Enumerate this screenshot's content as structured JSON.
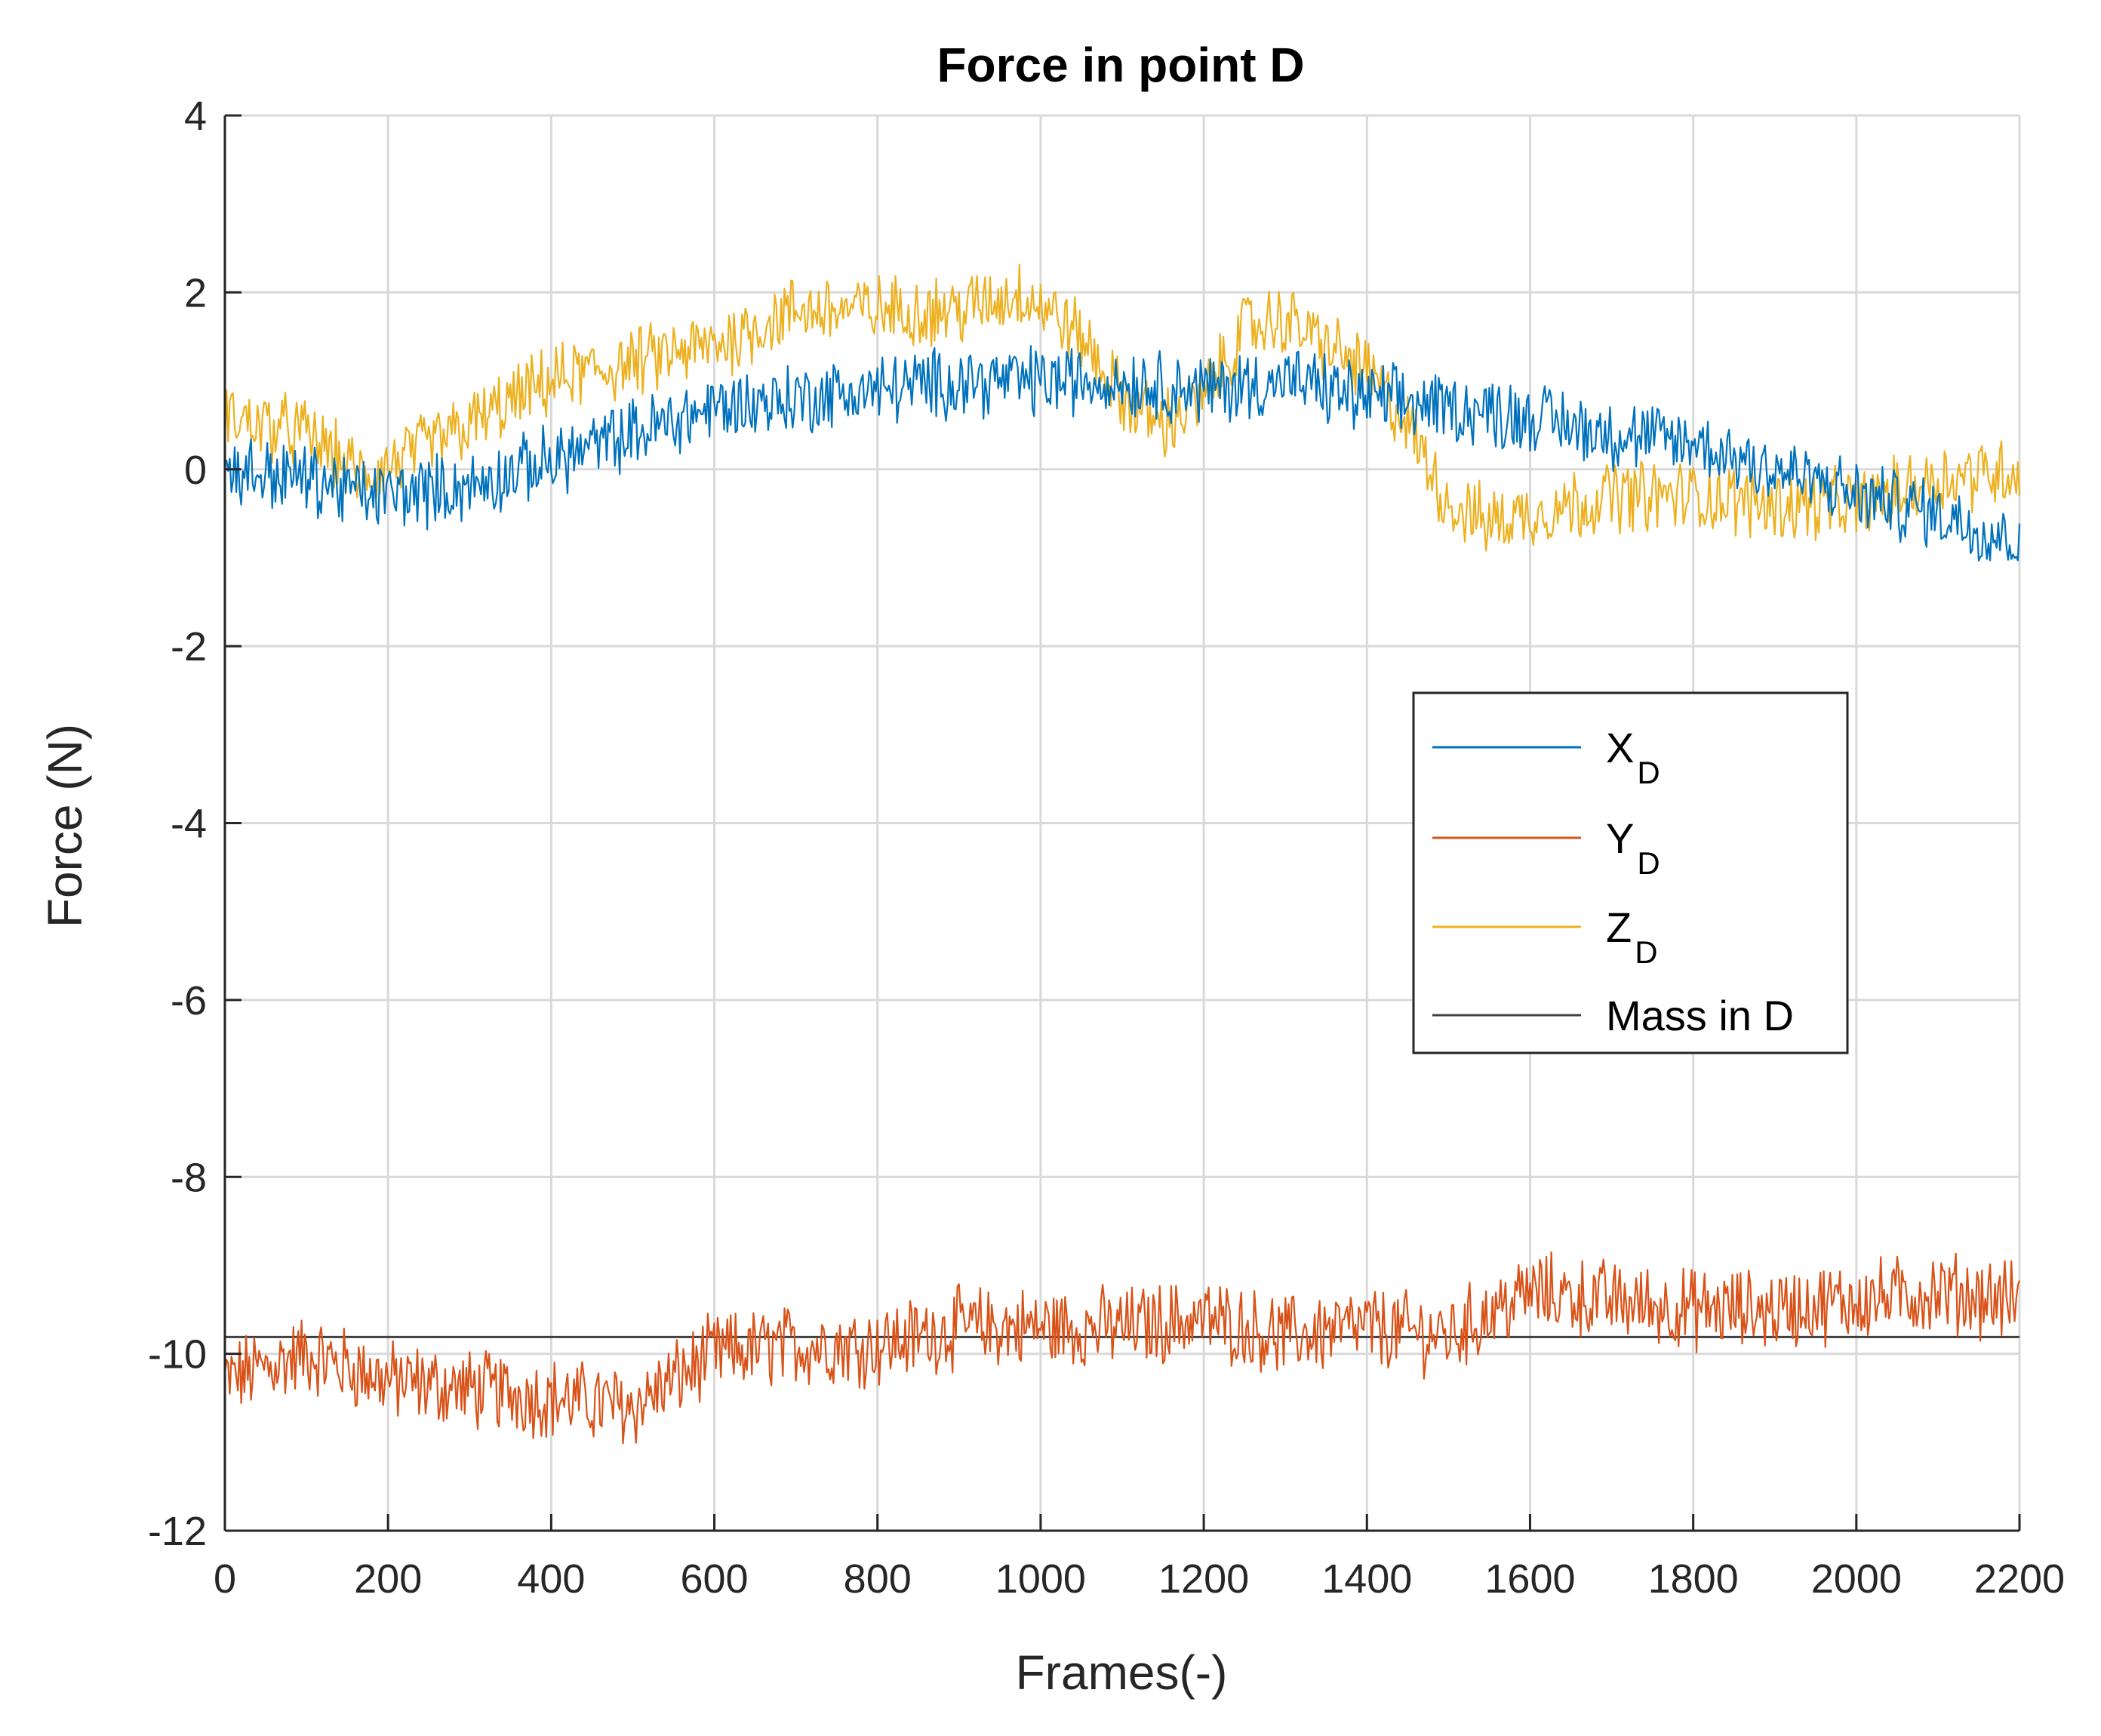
{
  "chart_data": {
    "type": "line",
    "title": "Force in point D",
    "xlabel": "Frames(-)",
    "ylabel": "Force (N)",
    "xlim": [
      0,
      2200
    ],
    "ylim": [
      -12,
      4
    ],
    "grid": true,
    "legend_position": "right-middle",
    "xticks": [
      0,
      200,
      400,
      600,
      800,
      1000,
      1200,
      1400,
      1600,
      1800,
      2000,
      2200
    ],
    "yticks": [
      -12,
      -10,
      -8,
      -6,
      -4,
      -2,
      0,
      2,
      4
    ],
    "xtick_labels": [
      "0",
      "200",
      "400",
      "600",
      "800",
      "1000",
      "1200",
      "1400",
      "1600",
      "1800",
      "2000",
      "2200"
    ],
    "ytick_labels": [
      "-12",
      "-10",
      "-8",
      "-6",
      "-4",
      "-2",
      "0",
      "2",
      "4"
    ],
    "noise_note": "series are noisy signals; trend points below with approximate noise amplitude",
    "series": [
      {
        "name": "X",
        "subscript": "D",
        "color": "#0072BD",
        "noise_amplitude": 0.35,
        "trend_x": [
          0,
          100,
          180,
          300,
          400,
          500,
          600,
          700,
          800,
          900,
          1000,
          1100,
          1200,
          1300,
          1400,
          1500,
          1600,
          1700,
          1800,
          1900,
          2000,
          2100,
          2200
        ],
        "trend_y": [
          0.0,
          -0.1,
          -0.3,
          -0.2,
          0.1,
          0.4,
          0.7,
          0.8,
          0.9,
          1.0,
          1.0,
          1.0,
          0.9,
          1.0,
          0.8,
          0.7,
          0.6,
          0.4,
          0.3,
          0.0,
          -0.3,
          -0.5,
          -0.8
        ]
      },
      {
        "name": "Y",
        "subscript": "D",
        "color": "#D95319",
        "noise_amplitude": 0.4,
        "trend_x": [
          0,
          100,
          200,
          300,
          400,
          500,
          600,
          700,
          800,
          900,
          1000,
          1100,
          1200,
          1300,
          1400,
          1500,
          1600,
          1700,
          1800,
          1900,
          2000,
          2100,
          2200
        ],
        "trend_y": [
          -10.3,
          -10.0,
          -10.3,
          -10.4,
          -10.5,
          -10.6,
          -10.0,
          -9.9,
          -9.9,
          -9.7,
          -9.7,
          -9.7,
          -9.6,
          -9.8,
          -9.7,
          -9.8,
          -9.3,
          -9.4,
          -9.5,
          -9.5,
          -9.4,
          -9.3,
          -9.4
        ]
      },
      {
        "name": "Z",
        "subscript": "D",
        "color": "#EDB120",
        "noise_amplitude": 0.35,
        "trend_x": [
          0,
          100,
          170,
          300,
          400,
          500,
          600,
          700,
          800,
          900,
          980,
          1050,
          1100,
          1150,
          1200,
          1250,
          1300,
          1400,
          1450,
          1500,
          1550,
          1600,
          1700,
          1800,
          1900,
          2000,
          2100,
          2200
        ],
        "trend_y": [
          0.6,
          0.4,
          -0.1,
          0.5,
          1.0,
          1.2,
          1.4,
          1.8,
          1.8,
          1.8,
          2.0,
          1.5,
          0.8,
          0.5,
          0.8,
          1.6,
          1.7,
          1.1,
          0.5,
          -0.4,
          -0.6,
          -0.5,
          -0.3,
          -0.3,
          -0.4,
          -0.4,
          -0.1,
          0.0
        ]
      },
      {
        "name": "Mass in D",
        "subscript": "",
        "color": "#404040",
        "noise_amplitude": 0,
        "trend_x": [
          0,
          2200
        ],
        "trend_y": [
          -9.81,
          -9.81
        ]
      }
    ]
  }
}
